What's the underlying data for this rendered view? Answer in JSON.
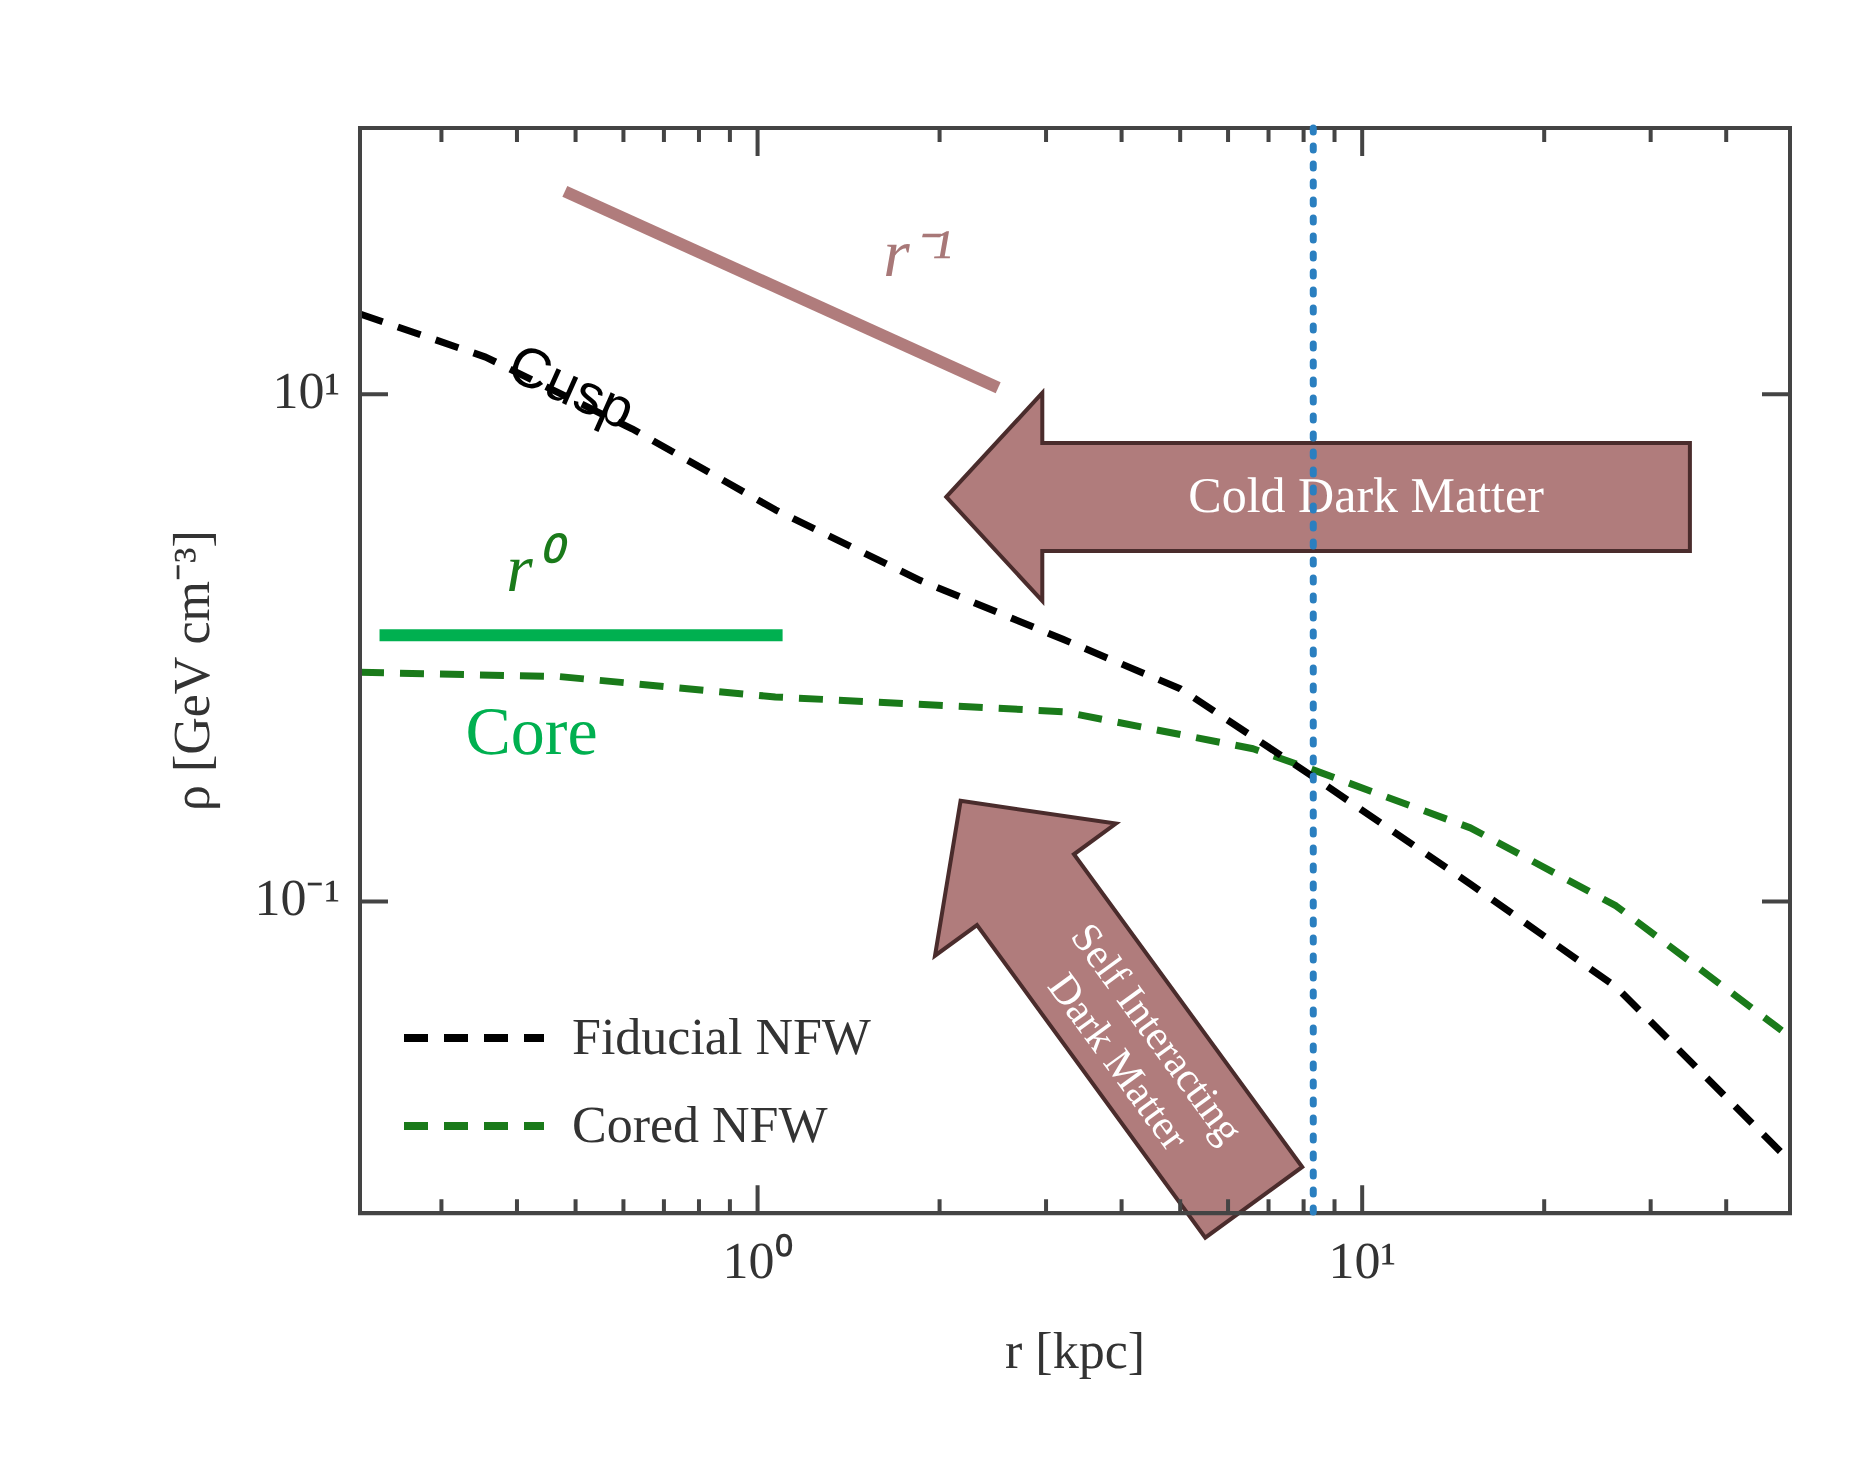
{
  "chart_data": {
    "type": "line",
    "xlabel": "r [kpc]",
    "ylabel": "ρ [GeV cm⁻³]",
    "log": "xy",
    "xlim": [
      0.22,
      51
    ],
    "ylim": [
      0.0059,
      112
    ],
    "xticks": [
      {
        "value": 0.3,
        "label": null
      },
      {
        "value": 0.4,
        "label": null
      },
      {
        "value": 0.5,
        "label": null
      },
      {
        "value": 0.6,
        "label": null
      },
      {
        "value": 0.7,
        "label": null
      },
      {
        "value": 0.8,
        "label": null
      },
      {
        "value": 0.9,
        "label": null
      },
      {
        "value": 1,
        "label": "10⁰"
      },
      {
        "value": 2,
        "label": null
      },
      {
        "value": 3,
        "label": null
      },
      {
        "value": 4,
        "label": null
      },
      {
        "value": 5,
        "label": null
      },
      {
        "value": 6,
        "label": null
      },
      {
        "value": 7,
        "label": null
      },
      {
        "value": 8,
        "label": null
      },
      {
        "value": 9,
        "label": null
      },
      {
        "value": 10,
        "label": "10¹"
      },
      {
        "value": 20,
        "label": null
      },
      {
        "value": 30,
        "label": null
      },
      {
        "value": 40,
        "label": null
      }
    ],
    "yticks": [
      {
        "value": 10,
        "label": "10¹"
      },
      {
        "value": 0.1,
        "label": "10⁻¹"
      }
    ],
    "grid": false,
    "legend": "bottom left",
    "line_style": "dashed",
    "marker": "none",
    "series": [
      {
        "name": "Fiducial NFW",
        "color": "#000000",
        "x": [
          0.22,
          0.355,
          0.62,
          1.07,
          1.86,
          3.2,
          5.0,
          8.3,
          15.1,
          26.3,
          49.4
        ],
        "values": [
          20.7,
          14.0,
          7.3,
          3.5,
          1.84,
          1.08,
          0.69,
          0.31,
          0.117,
          0.046,
          0.0102
        ]
      },
      {
        "name": "Cored NFW",
        "color": "#1a7a1a",
        "x": [
          0.22,
          0.47,
          1.07,
          3.2,
          6.6,
          8.3,
          15.1,
          26.3,
          49.4
        ],
        "values": [
          0.8,
          0.77,
          0.64,
          0.56,
          0.4,
          0.33,
          0.195,
          0.096,
          0.031
        ]
      },
      {
        "type": "line",
        "line_style": "solid",
        "color": "#b07c7c",
        "x": [
          0.48,
          2.5
        ],
        "values": [
          63,
          10.6
        ]
      },
      {
        "type": "line",
        "line_style": "solid",
        "color": "#00b050",
        "x": [
          0.237,
          1.1
        ],
        "values": [
          1.12,
          1.12
        ]
      }
    ],
    "ref_lines": [
      {
        "axis": "x",
        "value": 8.3,
        "color": "#2a7fc0",
        "line_style": "dotted"
      }
    ],
    "annotations": [
      {
        "text": "Cusp",
        "x": 0.49,
        "y": 10.4
      },
      "r⁻¹",
      "r⁰",
      "Core",
      "Cold Dark Matter",
      "Self Interacting Dark Matter"
    ]
  }
}
